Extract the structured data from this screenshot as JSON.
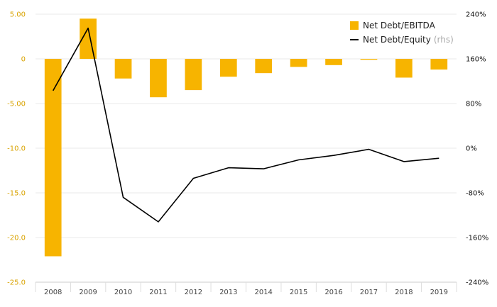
{
  "colors": {
    "bar": "#f7b400",
    "line": "#000000",
    "left_ticks": "#d9a300",
    "right_ticks": "#111111",
    "grid": "#e8e8e8"
  },
  "chart_data": {
    "type": "bar",
    "categories": [
      "2008",
      "2009",
      "2010",
      "2011",
      "2012",
      "2013",
      "2014",
      "2015",
      "2016",
      "2017",
      "2018",
      "2019"
    ],
    "series": [
      {
        "name": "Net Debt/EBITDA",
        "type": "bar",
        "axis": "left",
        "values": [
          -22.1,
          4.5,
          -2.2,
          -4.3,
          -3.5,
          -2.0,
          -1.6,
          -0.9,
          -0.7,
          -0.1,
          -2.1,
          -1.2
        ]
      },
      {
        "name": "Net Debt/Equity",
        "name_suffix": "(rhs)",
        "type": "line",
        "axis": "right",
        "values": [
          1.03,
          2.15,
          -0.88,
          -1.32,
          -0.54,
          -0.35,
          -0.37,
          -0.21,
          -0.13,
          -0.02,
          -0.24,
          -0.18
        ]
      }
    ],
    "left_axis": {
      "ylim": [
        -25,
        5
      ],
      "ticks": [
        "5.00",
        "0",
        "-5.00",
        "-10.0",
        "-15.0",
        "-20.0",
        "-25.0"
      ],
      "tick_values": [
        5,
        0,
        -5,
        -10,
        -15,
        -20,
        -25
      ]
    },
    "right_axis": {
      "ylim": [
        -2.4,
        2.4
      ],
      "ticks": [
        "240%",
        "160%",
        "80%",
        "0%",
        "-80%",
        "-160%",
        "-240%"
      ],
      "tick_values": [
        2.4,
        1.6,
        0.8,
        0,
        -0.8,
        -1.6,
        -2.4
      ]
    },
    "legend": {
      "position": "top-right"
    },
    "grid": true
  }
}
